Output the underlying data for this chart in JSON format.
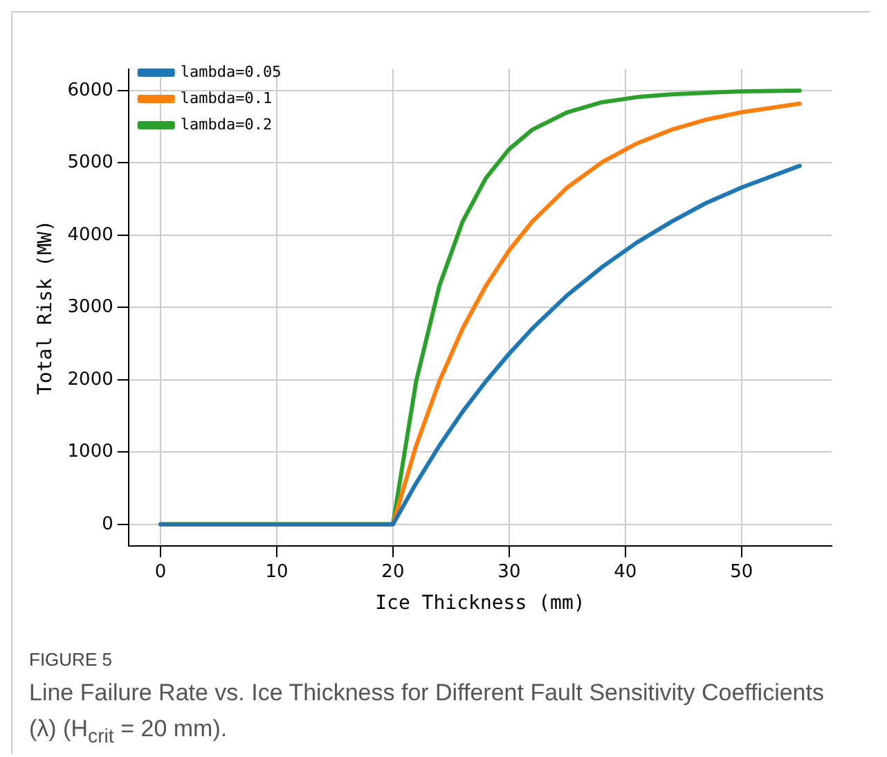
{
  "chart_data": {
    "type": "line",
    "xlabel": "Ice Thickness (mm)",
    "ylabel": "Total Risk (MW)",
    "x": [
      0,
      20,
      22,
      24,
      26,
      28,
      30,
      32,
      35,
      38,
      41,
      44,
      47,
      50,
      55
    ],
    "series": [
      {
        "name": "lambda=0.05",
        "color": "#1f77b4",
        "values": [
          0,
          0,
          570,
          1090,
          1560,
          1980,
          2360,
          2710,
          3170,
          3560,
          3900,
          4190,
          4450,
          4660,
          4960
        ]
      },
      {
        "name": "lambda=0.1",
        "color": "#ff7f0e",
        "values": [
          0,
          0,
          1090,
          1980,
          2710,
          3300,
          3790,
          4190,
          4660,
          5010,
          5270,
          5460,
          5600,
          5700,
          5820
        ]
      },
      {
        "name": "lambda=0.2",
        "color": "#2ca02c",
        "values": [
          0,
          0,
          1980,
          3300,
          4190,
          4790,
          5190,
          5460,
          5700,
          5840,
          5910,
          5950,
          5970,
          5990,
          6000
        ]
      }
    ],
    "xlim": [
      -2.75,
      57.75
    ],
    "ylim": [
      -300,
      6300
    ],
    "xticks": [
      0,
      10,
      20,
      30,
      40,
      50
    ],
    "yticks": [
      0,
      1000,
      2000,
      3000,
      4000,
      5000,
      6000
    ],
    "grid": true,
    "legend": "top left",
    "marker": "none",
    "line_style": "solid",
    "annotations": [
      "FIGURE 5",
      "Line Failure Rate vs. Ice Thickness for Different Fault Sensitivity Coefficients (λ) (H$_{crit}$ = 20 mm)."
    ]
  }
}
